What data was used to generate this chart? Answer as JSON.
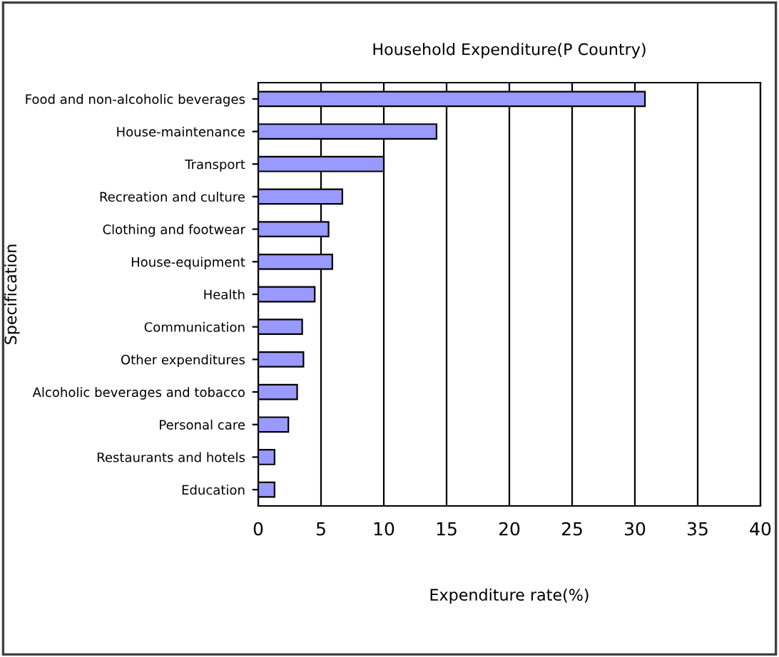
{
  "chart_data": {
    "type": "bar",
    "orientation": "horizontal",
    "title": "Household Expenditure(P Country)",
    "xlabel": "Expenditure rate(%)",
    "ylabel": "Specification",
    "categories": [
      "Food and non-alcoholic beverages",
      "House-maintenance",
      "Transport",
      "Recreation and culture",
      "Clothing and footwear",
      "House-equipment",
      "Health",
      "Communication",
      "Other expenditures",
      "Alcoholic beverages and tobacco",
      "Personal care",
      "Restaurants and hotels",
      "Education"
    ],
    "values": [
      30.8,
      14.2,
      10.0,
      6.7,
      5.6,
      5.9,
      4.5,
      3.5,
      3.6,
      3.1,
      2.4,
      1.3,
      1.3
    ],
    "color": "#9999ff",
    "xlim": [
      0,
      40
    ],
    "xticks": [
      0,
      5,
      10,
      15,
      20,
      25,
      30,
      35,
      40
    ],
    "grid": "x",
    "legend": false
  }
}
